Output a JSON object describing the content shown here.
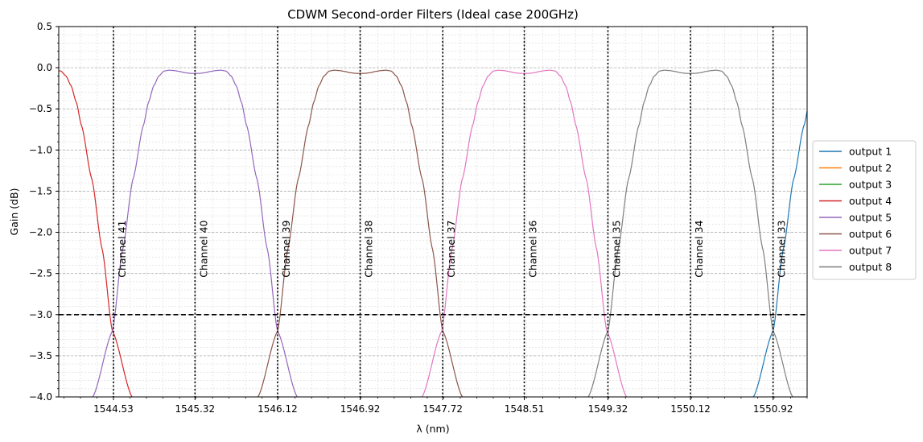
{
  "chart_data": {
    "type": "line",
    "title": "CDWM Second-order Filters (Ideal case 200GHz)",
    "xlabel": "λ (nm)",
    "ylabel": "Gain (dB)",
    "xlim": [
      1544.0,
      1551.25
    ],
    "ylim": [
      -4.0,
      0.5
    ],
    "grid": true,
    "legend_position": "outside-right",
    "x_ticks": [
      1544.53,
      1545.32,
      1546.12,
      1546.92,
      1547.72,
      1548.51,
      1549.32,
      1550.12,
      1550.92
    ],
    "x_tick_labels": [
      "1544.53",
      "1545.32",
      "1546.12",
      "1546.92",
      "1547.72",
      "1548.51",
      "1549.32",
      "1550.12",
      "1550.92"
    ],
    "y_ticks": [
      0.5,
      0.0,
      -0.5,
      -1.0,
      -1.5,
      -2.0,
      -2.5,
      -3.0,
      -3.5,
      -4.0
    ],
    "y_tick_labels": [
      "0.5",
      "0.0",
      "−0.5",
      "−1.0",
      "−1.5",
      "−2.0",
      "−2.5",
      "−3.0",
      "−3.5",
      "−4.0"
    ],
    "threshold_line": {
      "y": -3.0,
      "style": "dashed",
      "color": "#000000"
    },
    "channels": [
      {
        "label": "Channel 41",
        "x": 1544.53
      },
      {
        "label": "Channel 40",
        "x": 1545.32
      },
      {
        "label": "Channel 39",
        "x": 1546.12
      },
      {
        "label": "Channel 38",
        "x": 1546.92
      },
      {
        "label": "Channel 37",
        "x": 1547.72
      },
      {
        "label": "Channel 36",
        "x": 1548.51
      },
      {
        "label": "Channel 35",
        "x": 1549.32
      },
      {
        "label": "Channel 34",
        "x": 1550.12
      },
      {
        "label": "Channel 33",
        "x": 1550.92
      }
    ],
    "passband_shape": {
      "description": "second-order flat-top response, two peaks near -0.03 dB with a dip near -0.07 dB at channel centre",
      "dx": [
        -0.99,
        -0.8,
        -0.7,
        -0.6,
        -0.5,
        -0.45,
        -0.4,
        -0.35,
        -0.3,
        -0.25,
        -0.2,
        -0.15,
        -0.1,
        -0.05,
        0,
        0.05,
        0.1,
        0.15,
        0.2,
        0.25,
        0.3,
        0.35,
        0.4,
        0.45,
        0.5,
        0.6,
        0.7,
        0.8,
        0.99
      ],
      "gain_db": [
        -4.0,
        -3.2,
        -2.2,
        -1.35,
        -0.7,
        -0.42,
        -0.22,
        -0.1,
        -0.04,
        -0.03,
        -0.035,
        -0.045,
        -0.06,
        -0.068,
        -0.07,
        -0.068,
        -0.06,
        -0.045,
        -0.035,
        -0.03,
        -0.04,
        -0.1,
        -0.22,
        -0.42,
        -0.7,
        -1.35,
        -2.2,
        -3.2,
        -4.0
      ]
    },
    "series": [
      {
        "name": "output 1",
        "color": "#1f77b4",
        "center": 1551.72
      },
      {
        "name": "output 2",
        "color": "#ff7f0e",
        "center": null
      },
      {
        "name": "output 3",
        "color": "#2ca02c",
        "center": null
      },
      {
        "name": "output 4",
        "color": "#d62728",
        "center": 1543.72
      },
      {
        "name": "output 5",
        "color": "#9467bd",
        "center": 1545.32
      },
      {
        "name": "output 6",
        "color": "#8c564b",
        "center": 1546.92
      },
      {
        "name": "output 7",
        "color": "#e377c2",
        "center": 1548.51
      },
      {
        "name": "output 8",
        "color": "#7f7f7f",
        "center": 1550.12
      }
    ]
  }
}
